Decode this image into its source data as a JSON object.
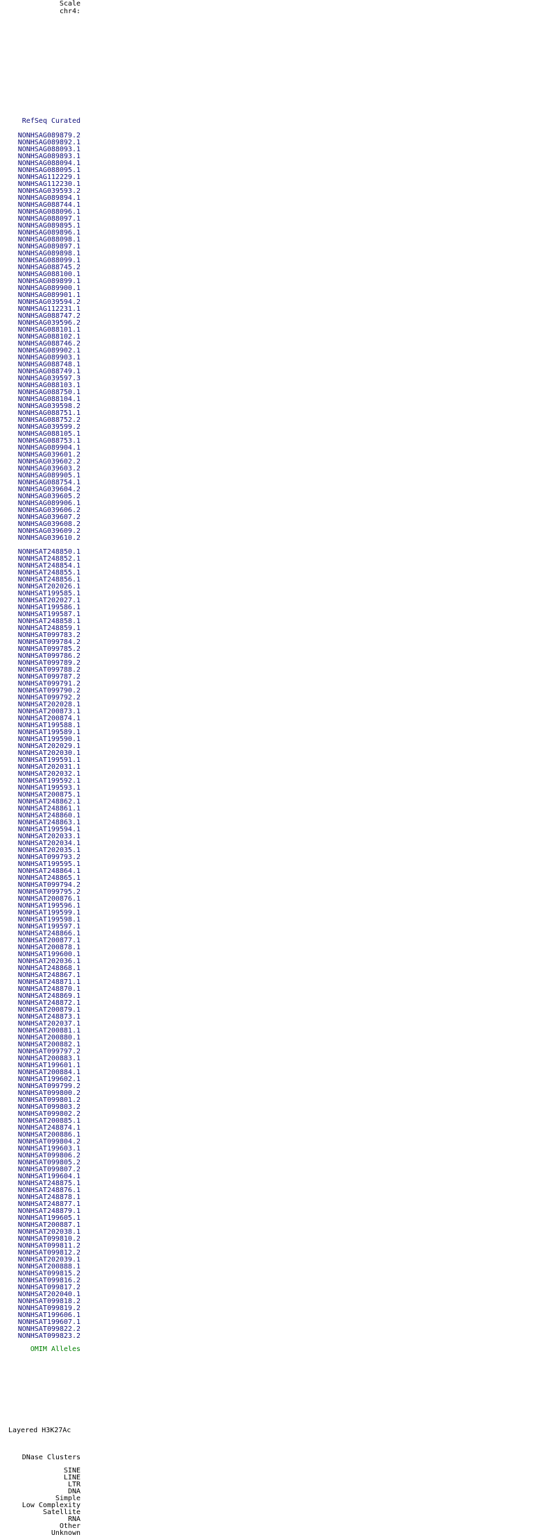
{
  "colors": {
    "background": "#ffffff",
    "item_blue": "#0c0c78",
    "omim_green": "#008000",
    "text_black": "#000000"
  },
  "ruler": {
    "scale_label": "Scale",
    "position_label": "chr4:"
  },
  "refseq": {
    "title": "RefSeq Curated",
    "genes": [
      "NONHSAG089879.2",
      "NONHSAG089892.1",
      "NONHSAG088093.1",
      "NONHSAG089893.1",
      "NONHSAG088094.1",
      "NONHSAG088095.1",
      "NONHSAG112229.1",
      "NONHSAG112230.1",
      "NONHSAG039593.2",
      "NONHSAG089894.1",
      "NONHSAG088744.1",
      "NONHSAG088096.1",
      "NONHSAG088097.1",
      "NONHSAG089895.1",
      "NONHSAG089896.1",
      "NONHSAG088098.1",
      "NONHSAG089897.1",
      "NONHSAG089898.1",
      "NONHSAG088099.1",
      "NONHSAG088745.2",
      "NONHSAG088100.1",
      "NONHSAG089899.1",
      "NONHSAG089900.1",
      "NONHSAG089901.1",
      "NONHSAG039594.2",
      "NONHSAG112231.1",
      "NONHSAG088747.2",
      "NONHSAG039596.2",
      "NONHSAG088101.1",
      "NONHSAG088102.1",
      "NONHSAG088746.2",
      "NONHSAG089902.1",
      "NONHSAG089903.1",
      "NONHSAG088748.1",
      "NONHSAG088749.1",
      "NONHSAG039597.3",
      "NONHSAG088103.1",
      "NONHSAG088750.1",
      "NONHSAG088104.1",
      "NONHSAG039598.2",
      "NONHSAG088751.1",
      "NONHSAG088752.2",
      "NONHSAG039599.2",
      "NONHSAG088105.1",
      "NONHSAG088753.1",
      "NONHSAG089904.1",
      "NONHSAG039601.2",
      "NONHSAG039602.2",
      "NONHSAG039603.2",
      "NONHSAG089905.1",
      "NONHSAG088754.1",
      "NONHSAG039604.2",
      "NONHSAG039605.2",
      "NONHSAG089906.1",
      "NONHSAG039606.2",
      "NONHSAG039607.2",
      "NONHSAG039608.2",
      "NONHSAG039609.2",
      "NONHSAG039610.2"
    ],
    "transcripts": [
      "NONHSAT248850.1",
      "NONHSAT248852.1",
      "NONHSAT248854.1",
      "NONHSAT248855.1",
      "NONHSAT248856.1",
      "NONHSAT202026.1",
      "NONHSAT199585.1",
      "NONHSAT202027.1",
      "NONHSAT199586.1",
      "NONHSAT199587.1",
      "NONHSAT248858.1",
      "NONHSAT248859.1",
      "NONHSAT099783.2",
      "NONHSAT099784.2",
      "NONHSAT099785.2",
      "NONHSAT099786.2",
      "NONHSAT099789.2",
      "NONHSAT099788.2",
      "NONHSAT099787.2",
      "NONHSAT099791.2",
      "NONHSAT099790.2",
      "NONHSAT099792.2",
      "NONHSAT202028.1",
      "NONHSAT200873.1",
      "NONHSAT200874.1",
      "NONHSAT199588.1",
      "NONHSAT199589.1",
      "NONHSAT199590.1",
      "NONHSAT202029.1",
      "NONHSAT202030.1",
      "NONHSAT199591.1",
      "NONHSAT202031.1",
      "NONHSAT202032.1",
      "NONHSAT199592.1",
      "NONHSAT199593.1",
      "NONHSAT200875.1",
      "NONHSAT248862.1",
      "NONHSAT248861.1",
      "NONHSAT248860.1",
      "NONHSAT248863.1",
      "NONHSAT199594.1",
      "NONHSAT202033.1",
      "NONHSAT202034.1",
      "NONHSAT202035.1",
      "NONHSAT099793.2",
      "NONHSAT199595.1",
      "NONHSAT248864.1",
      "NONHSAT248865.1",
      "NONHSAT099794.2",
      "NONHSAT099795.2",
      "NONHSAT200876.1",
      "NONHSAT199596.1",
      "NONHSAT199599.1",
      "NONHSAT199598.1",
      "NONHSAT199597.1",
      "NONHSAT248866.1",
      "NONHSAT200877.1",
      "NONHSAT200878.1",
      "NONHSAT199600.1",
      "NONHSAT202036.1",
      "NONHSAT248868.1",
      "NONHSAT248867.1",
      "NONHSAT248871.1",
      "NONHSAT248870.1",
      "NONHSAT248869.1",
      "NONHSAT248872.1",
      "NONHSAT200879.1",
      "NONHSAT248873.1",
      "NONHSAT202037.1",
      "NONHSAT200881.1",
      "NONHSAT200880.1",
      "NONHSAT200882.1",
      "NONHSAT099797.2",
      "NONHSAT200883.1",
      "NONHSAT199601.1",
      "NONHSAT200884.1",
      "NONHSAT199602.1",
      "NONHSAT099799.2",
      "NONHSAT099800.2",
      "NONHSAT099801.2",
      "NONHSAT099803.2",
      "NONHSAT099802.2",
      "NONHSAT200885.1",
      "NONHSAT248874.1",
      "NONHSAT200886.1",
      "NONHSAT099804.2",
      "NONHSAT199603.1",
      "NONHSAT099806.2",
      "NONHSAT099805.2",
      "NONHSAT099807.2",
      "NONHSAT199604.1",
      "NONHSAT248875.1",
      "NONHSAT248876.1",
      "NONHSAT248878.1",
      "NONHSAT248877.1",
      "NONHSAT248879.1",
      "NONHSAT199605.1",
      "NONHSAT200887.1",
      "NONHSAT202038.1",
      "NONHSAT099810.2",
      "NONHSAT099811.2",
      "NONHSAT099812.2",
      "NONHSAT202039.1",
      "NONHSAT200888.1",
      "NONHSAT099815.2",
      "NONHSAT099816.2",
      "NONHSAT099817.2",
      "NONHSAT202040.1",
      "NONHSAT099818.2",
      "NONHSAT099819.2",
      "NONHSAT199606.1",
      "NONHSAT199607.1",
      "NONHSAT099822.2",
      "NONHSAT099823.2"
    ]
  },
  "omim": {
    "title": "OMIM Alleles"
  },
  "regulation": {
    "layered_h3k27ac": "Layered H3K27Ac",
    "dnase_clusters": "DNase Clusters"
  },
  "repeats": {
    "classes": [
      "SINE",
      "LINE",
      "LTR",
      "DNA",
      "Simple",
      "Low Complexity",
      "Satellite",
      "RNA",
      "Other",
      "Unknown"
    ]
  }
}
